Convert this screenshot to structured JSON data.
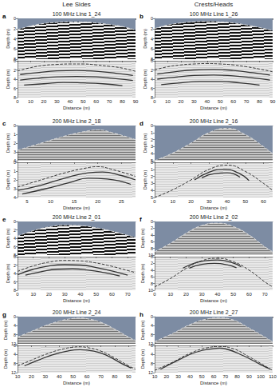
{
  "header": {
    "left": "Lee Sides",
    "right": "Crests/Heads"
  },
  "chart_data": [
    {
      "type": "line",
      "panel": "a",
      "title": "100 MHz Line 1_24",
      "xlabel": "Distance (m)",
      "ylabel": "Depth (m)",
      "xlim": [
        0,
        90
      ],
      "xticks": [
        0,
        10,
        20,
        30,
        40,
        50,
        60,
        70,
        80,
        90
      ],
      "ylim": [
        0,
        8
      ],
      "yticks": [
        0,
        2,
        4,
        6,
        8
      ],
      "series": [
        {
          "line_style": "dashed",
          "color": "#222222",
          "x": [
            0,
            10,
            20,
            30,
            40,
            50,
            60,
            70,
            80,
            90
          ],
          "values": [
            2.2,
            1.5,
            1.0,
            0.8,
            0.7,
            0.7,
            0.9,
            1.2,
            1.6,
            2.3
          ]
        },
        {
          "line_style": "solid",
          "color": "#333333",
          "x": [
            2,
            15,
            30,
            45,
            60,
            75,
            88
          ],
          "values": [
            3.0,
            2.6,
            2.2,
            2.1,
            2.3,
            2.7,
            3.2
          ]
        },
        {
          "line_style": "solid",
          "color": "#333333",
          "x": [
            2,
            15,
            30,
            45,
            60,
            75,
            88
          ],
          "values": [
            4.2,
            3.8,
            3.5,
            3.4,
            3.5,
            3.9,
            4.3
          ]
        },
        {
          "line_style": "solid",
          "color": "#333333",
          "x": [
            5,
            20,
            35,
            50,
            65,
            80
          ],
          "values": [
            5.3,
            5.0,
            4.7,
            4.8,
            5.0,
            5.4
          ]
        }
      ]
    },
    {
      "type": "line",
      "panel": "b",
      "title": "100 MHz Line 1_26",
      "xlabel": "Distance (m)",
      "ylabel": "Depth (m)",
      "xlim": [
        0,
        90
      ],
      "xticks": [
        0,
        10,
        20,
        30,
        40,
        50,
        60,
        70,
        80,
        90
      ],
      "ylim": [
        0,
        8
      ],
      "yticks": [
        0,
        2,
        4,
        6,
        8
      ],
      "series": [
        {
          "line_style": "dashed",
          "color": "#222222",
          "x": [
            0,
            10,
            20,
            30,
            40,
            50,
            60,
            70,
            80,
            90
          ],
          "values": [
            2.0,
            1.3,
            0.9,
            0.7,
            0.6,
            0.7,
            0.9,
            1.3,
            1.8,
            2.4
          ]
        },
        {
          "line_style": "solid",
          "color": "#333333",
          "x": [
            2,
            15,
            30,
            45,
            60,
            75,
            88
          ],
          "values": [
            2.9,
            2.4,
            2.0,
            1.9,
            2.1,
            2.6,
            3.1
          ]
        },
        {
          "line_style": "solid",
          "color": "#333333",
          "x": [
            2,
            15,
            30,
            45,
            60,
            75,
            88
          ],
          "values": [
            4.0,
            3.6,
            3.2,
            3.1,
            3.3,
            3.7,
            4.2
          ]
        },
        {
          "line_style": "solid",
          "color": "#333333",
          "x": [
            5,
            20,
            35,
            50,
            65,
            80
          ],
          "values": [
            5.2,
            4.8,
            4.5,
            4.5,
            4.8,
            5.3
          ]
        }
      ]
    },
    {
      "type": "line",
      "panel": "c",
      "title": "200 MHz Line 2_18",
      "xlabel": "Distance (m)",
      "ylabel": "Depth (m)",
      "xlim": [
        3,
        28
      ],
      "xticks": [
        5,
        10,
        15,
        20,
        25
      ],
      "ylim": [
        0,
        4
      ],
      "yticks": [
        0,
        1,
        2,
        3,
        4
      ],
      "series": [
        {
          "line_style": "dashed",
          "color": "#222222",
          "x": [
            3,
            8,
            13,
            18,
            20,
            23,
            28
          ],
          "values": [
            2.8,
            2.0,
            1.2,
            0.6,
            0.5,
            0.8,
            1.6
          ]
        },
        {
          "line_style": "solid",
          "color": "#333333",
          "x": [
            3,
            8,
            13,
            18,
            21,
            25,
            28
          ],
          "values": [
            3.2,
            2.6,
            1.8,
            1.2,
            1.1,
            1.5,
            2.0
          ]
        },
        {
          "line_style": "solid",
          "color": "#333333",
          "x": [
            4,
            9,
            14,
            18,
            22,
            27
          ],
          "values": [
            3.6,
            3.0,
            2.3,
            1.8,
            1.9,
            2.5
          ]
        }
      ]
    },
    {
      "type": "line",
      "panel": "d",
      "title": "200 MHz Line 2_16",
      "xlabel": "Distance (m)",
      "ylabel": "Depth (m)",
      "xlim": [
        0,
        65
      ],
      "xticks": [
        0,
        10,
        20,
        30,
        40,
        50,
        60
      ],
      "ylim": [
        0,
        5
      ],
      "yticks": [
        0,
        1,
        2,
        3,
        4,
        5
      ],
      "series": [
        {
          "line_style": "dashed",
          "color": "#222222",
          "x": [
            0,
            10,
            20,
            30,
            40,
            50,
            60,
            65
          ],
          "values": [
            5.0,
            3.9,
            2.5,
            1.0,
            0.4,
            1.3,
            3.0,
            4.0
          ]
        },
        {
          "line_style": "solid",
          "color": "#333333",
          "x": [
            22,
            30,
            38,
            46,
            52
          ],
          "values": [
            2.5,
            1.4,
            1.0,
            1.5,
            2.6
          ]
        },
        {
          "line_style": "solid",
          "color": "#333333",
          "x": [
            26,
            33,
            40,
            47
          ],
          "values": [
            2.2,
            1.6,
            1.5,
            2.1
          ]
        }
      ]
    },
    {
      "type": "line",
      "panel": "e",
      "title": "200 MHz Line 2_01",
      "xlabel": "Distance (m)",
      "ylabel": "Depth (m)",
      "xlim": [
        0,
        75
      ],
      "xticks": [
        0,
        10,
        20,
        30,
        40,
        50,
        60,
        70
      ],
      "ylim": [
        0,
        8
      ],
      "yticks": [
        0,
        2,
        4,
        6,
        8
      ],
      "series": [
        {
          "line_style": "dashed",
          "color": "#222222",
          "x": [
            0,
            10,
            20,
            30,
            40,
            50,
            60,
            70,
            75
          ],
          "values": [
            3.5,
            2.2,
            1.3,
            0.9,
            1.0,
            1.5,
            2.3,
            3.3,
            3.8
          ]
        },
        {
          "line_style": "solid",
          "color": "#333333",
          "x": [
            0,
            10,
            20,
            30,
            40,
            50,
            60,
            70
          ],
          "values": [
            4.3,
            3.0,
            2.2,
            1.9,
            2.0,
            2.6,
            3.4,
            4.4
          ]
        },
        {
          "line_style": "solid",
          "color": "#333333",
          "x": [
            5,
            15,
            25,
            35,
            45,
            55,
            65
          ],
          "values": [
            4.4,
            3.6,
            3.0,
            2.9,
            3.2,
            3.8,
            4.6
          ]
        }
      ]
    },
    {
      "type": "line",
      "panel": "f",
      "title": "200 MHz Line 2_02",
      "xlabel": "Distance (m)",
      "ylabel": "Depth (m)",
      "xlim": [
        0,
        75
      ],
      "xticks": [
        0,
        10,
        20,
        30,
        40,
        50,
        60,
        70
      ],
      "ylim": [
        0,
        10
      ],
      "yticks": [
        0,
        2,
        4,
        6,
        8,
        10
      ],
      "series": [
        {
          "line_style": "dashed",
          "color": "#222222",
          "x": [
            0,
            10,
            20,
            30,
            40,
            50,
            60,
            70,
            75
          ],
          "values": [
            9.0,
            6.5,
            3.5,
            1.2,
            0.5,
            1.5,
            4.0,
            7.5,
            9.0
          ]
        },
        {
          "line_style": "solid",
          "color": "#333333",
          "x": [
            18,
            25,
            32,
            40,
            48,
            55
          ],
          "values": [
            3.4,
            2.0,
            1.2,
            1.0,
            1.6,
            3.0
          ]
        },
        {
          "line_style": "solid",
          "color": "#333333",
          "x": [
            22,
            30,
            38,
            46,
            52
          ],
          "values": [
            3.4,
            2.3,
            2.0,
            2.4,
            3.3
          ]
        }
      ]
    },
    {
      "type": "line",
      "panel": "g",
      "title": "200 MHz Line 2_24",
      "xlabel": "Distance (m)",
      "ylabel": "Depth (m)",
      "xlim": [
        10,
        95
      ],
      "xticks": [
        10,
        20,
        30,
        40,
        50,
        60,
        70,
        80,
        90
      ],
      "ylim": [
        0,
        12
      ],
      "yticks": [
        0,
        4,
        8,
        12
      ],
      "series": [
        {
          "line_style": "dashed",
          "color": "#222222",
          "x": [
            10,
            20,
            30,
            40,
            50,
            55,
            60,
            70,
            80,
            90,
            95
          ],
          "values": [
            9.0,
            6.5,
            4.0,
            2.0,
            0.8,
            0.6,
            0.9,
            2.5,
            5.5,
            9.0,
            10.5
          ]
        },
        {
          "line_style": "solid",
          "color": "#333333",
          "x": [
            15,
            25,
            35,
            45,
            55,
            65,
            75,
            85,
            92
          ],
          "values": [
            9.0,
            6.5,
            4.2,
            2.6,
            1.9,
            2.5,
            4.6,
            8.0,
            10.0
          ]
        }
      ]
    },
    {
      "type": "line",
      "panel": "h",
      "title": "200 MHz Line 2_27",
      "xlabel": "Distance (m)",
      "ylabel": "Depth (m)",
      "xlim": [
        10,
        110
      ],
      "xticks": [
        10,
        20,
        30,
        40,
        50,
        60,
        70,
        80,
        90,
        100,
        110
      ],
      "ylim": [
        0,
        12
      ],
      "yticks": [
        0,
        4,
        8,
        12
      ],
      "series": [
        {
          "line_style": "dashed",
          "color": "#222222",
          "x": [
            10,
            25,
            40,
            55,
            65,
            75,
            90,
            105,
            110
          ],
          "values": [
            11.0,
            7.5,
            3.5,
            1.0,
            0.5,
            1.2,
            5.0,
            9.5,
            11.0
          ]
        },
        {
          "line_style": "solid",
          "color": "#333333",
          "x": [
            15,
            30,
            45,
            60,
            65,
            70,
            85,
            100,
            108
          ],
          "values": [
            10.5,
            6.5,
            3.0,
            1.4,
            1.2,
            1.5,
            4.5,
            8.5,
            10.5
          ]
        }
      ]
    }
  ]
}
